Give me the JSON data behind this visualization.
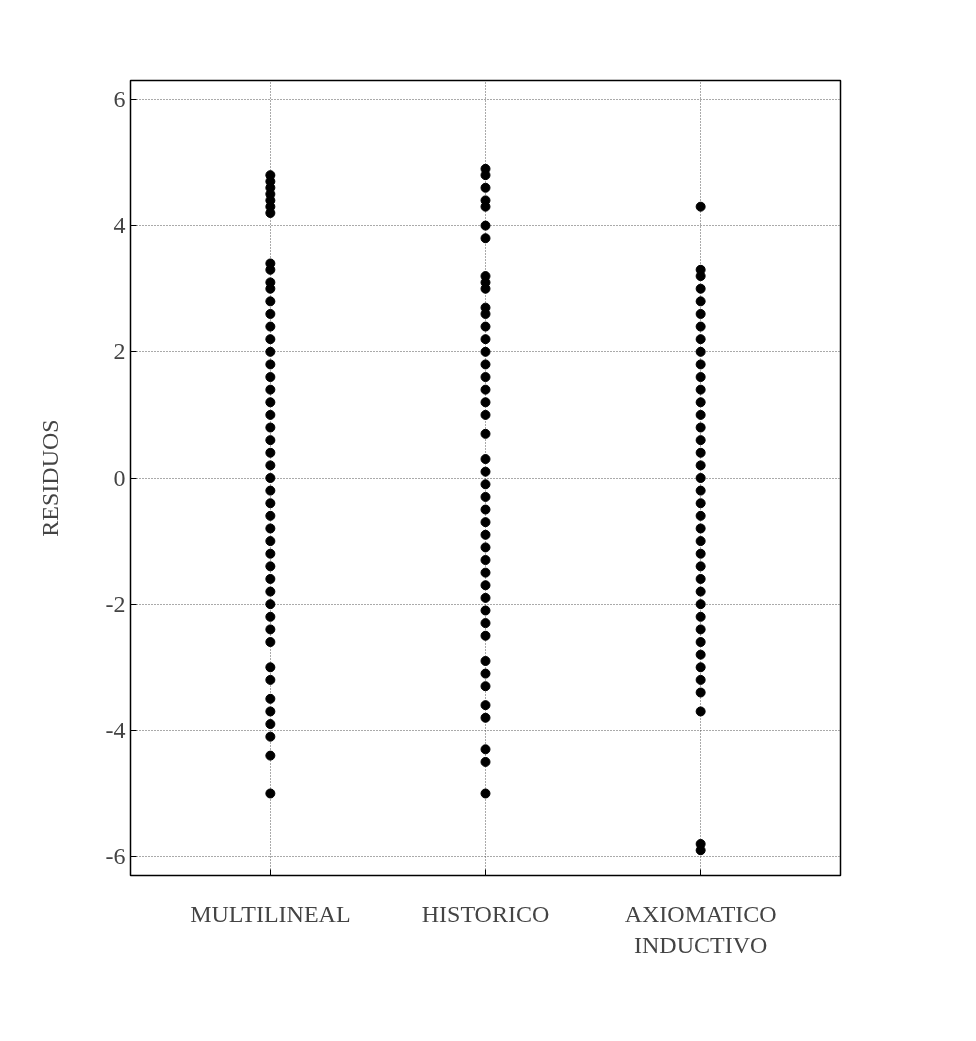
{
  "chart_data": {
    "type": "scatter",
    "ylabel": "RESIDUOS",
    "categories": [
      "MULTILINEAL",
      "HISTORICO",
      "AXIOMATICO INDUCTIVO"
    ],
    "ylim": [
      -6.3,
      6.3
    ],
    "yticks": [
      -6,
      -4,
      -2,
      0,
      2,
      4,
      6
    ],
    "grid": true,
    "marker": "circle",
    "series": [
      {
        "color": "#000000",
        "x": [
          "MULTILINEAL",
          "MULTILINEAL",
          "MULTILINEAL",
          "MULTILINEAL",
          "MULTILINEAL",
          "MULTILINEAL",
          "MULTILINEAL",
          "MULTILINEAL",
          "MULTILINEAL",
          "MULTILINEAL",
          "MULTILINEAL",
          "MULTILINEAL",
          "MULTILINEAL",
          "MULTILINEAL",
          "MULTILINEAL",
          "MULTILINEAL",
          "MULTILINEAL",
          "MULTILINEAL",
          "MULTILINEAL",
          "MULTILINEAL",
          "MULTILINEAL",
          "MULTILINEAL",
          "MULTILINEAL",
          "MULTILINEAL",
          "MULTILINEAL",
          "MULTILINEAL",
          "MULTILINEAL",
          "MULTILINEAL",
          "MULTILINEAL",
          "MULTILINEAL",
          "MULTILINEAL",
          "MULTILINEAL",
          "MULTILINEAL",
          "MULTILINEAL",
          "MULTILINEAL",
          "MULTILINEAL",
          "MULTILINEAL",
          "MULTILINEAL",
          "MULTILINEAL",
          "MULTILINEAL",
          "MULTILINEAL",
          "MULTILINEAL",
          "MULTILINEAL",
          "MULTILINEAL",
          "MULTILINEAL",
          "MULTILINEAL",
          "MULTILINEAL"
        ],
        "values": [
          4.8,
          4.7,
          4.6,
          4.5,
          4.4,
          4.3,
          4.2,
          3.4,
          3.3,
          3.1,
          3.0,
          2.8,
          2.6,
          2.4,
          2.2,
          2.0,
          1.8,
          1.6,
          1.4,
          1.2,
          1.0,
          0.8,
          0.6,
          0.4,
          0.2,
          0.0,
          -0.2,
          -0.4,
          -0.6,
          -0.8,
          -1.0,
          -1.2,
          -1.4,
          -1.6,
          -1.8,
          -2.0,
          -2.2,
          -2.4,
          -2.6,
          -3.0,
          -3.2,
          -3.5,
          -3.7,
          -3.9,
          -4.1,
          -4.4,
          -5.0
        ]
      },
      {
        "color": "#000000",
        "x": [
          "HISTORICO",
          "HISTORICO",
          "HISTORICO",
          "HISTORICO",
          "HISTORICO",
          "HISTORICO",
          "HISTORICO",
          "HISTORICO",
          "HISTORICO",
          "HISTORICO",
          "HISTORICO",
          "HISTORICO",
          "HISTORICO",
          "HISTORICO",
          "HISTORICO",
          "HISTORICO",
          "HISTORICO",
          "HISTORICO",
          "HISTORICO",
          "HISTORICO",
          "HISTORICO",
          "HISTORICO",
          "HISTORICO",
          "HISTORICO",
          "HISTORICO",
          "HISTORICO",
          "HISTORICO",
          "HISTORICO",
          "HISTORICO",
          "HISTORICO",
          "HISTORICO",
          "HISTORICO",
          "HISTORICO",
          "HISTORICO",
          "HISTORICO",
          "HISTORICO",
          "HISTORICO",
          "HISTORICO",
          "HISTORICO",
          "HISTORICO",
          "HISTORICO",
          "HISTORICO",
          "HISTORICO",
          "HISTORICO"
        ],
        "values": [
          4.9,
          4.8,
          4.6,
          4.4,
          4.3,
          4.0,
          3.8,
          3.2,
          3.1,
          3.0,
          2.7,
          2.6,
          2.4,
          2.2,
          2.0,
          1.8,
          1.6,
          1.4,
          1.2,
          1.0,
          0.7,
          0.3,
          0.1,
          -0.1,
          -0.3,
          -0.5,
          -0.7,
          -0.9,
          -1.1,
          -1.3,
          -1.5,
          -1.7,
          -1.9,
          -2.1,
          -2.3,
          -2.5,
          -2.9,
          -3.1,
          -3.3,
          -3.6,
          -3.8,
          -4.3,
          -4.5,
          -5.0
        ]
      },
      {
        "color": "#000000",
        "x": [
          "AXIOMATICO INDUCTIVO",
          "AXIOMATICO INDUCTIVO",
          "AXIOMATICO INDUCTIVO",
          "AXIOMATICO INDUCTIVO",
          "AXIOMATICO INDUCTIVO",
          "AXIOMATICO INDUCTIVO",
          "AXIOMATICO INDUCTIVO",
          "AXIOMATICO INDUCTIVO",
          "AXIOMATICO INDUCTIVO",
          "AXIOMATICO INDUCTIVO",
          "AXIOMATICO INDUCTIVO",
          "AXIOMATICO INDUCTIVO",
          "AXIOMATICO INDUCTIVO",
          "AXIOMATICO INDUCTIVO",
          "AXIOMATICO INDUCTIVO",
          "AXIOMATICO INDUCTIVO",
          "AXIOMATICO INDUCTIVO",
          "AXIOMATICO INDUCTIVO",
          "AXIOMATICO INDUCTIVO",
          "AXIOMATICO INDUCTIVO",
          "AXIOMATICO INDUCTIVO",
          "AXIOMATICO INDUCTIVO",
          "AXIOMATICO INDUCTIVO",
          "AXIOMATICO INDUCTIVO",
          "AXIOMATICO INDUCTIVO",
          "AXIOMATICO INDUCTIVO",
          "AXIOMATICO INDUCTIVO",
          "AXIOMATICO INDUCTIVO",
          "AXIOMATICO INDUCTIVO",
          "AXIOMATICO INDUCTIVO",
          "AXIOMATICO INDUCTIVO",
          "AXIOMATICO INDUCTIVO",
          "AXIOMATICO INDUCTIVO",
          "AXIOMATICO INDUCTIVO",
          "AXIOMATICO INDUCTIVO",
          "AXIOMATICO INDUCTIVO",
          "AXIOMATICO INDUCTIVO",
          "AXIOMATICO INDUCTIVO",
          "AXIOMATICO INDUCTIVO"
        ],
        "values": [
          4.3,
          3.3,
          3.2,
          3.0,
          2.8,
          2.6,
          2.4,
          2.2,
          2.0,
          1.8,
          1.6,
          1.4,
          1.2,
          1.0,
          0.8,
          0.6,
          0.4,
          0.2,
          0.0,
          -0.2,
          -0.4,
          -0.6,
          -0.8,
          -1.0,
          -1.2,
          -1.4,
          -1.6,
          -1.8,
          -2.0,
          -2.2,
          -2.4,
          -2.6,
          -2.8,
          -3.0,
          -3.2,
          -3.4,
          -3.7,
          -5.8,
          -5.9
        ]
      }
    ]
  }
}
